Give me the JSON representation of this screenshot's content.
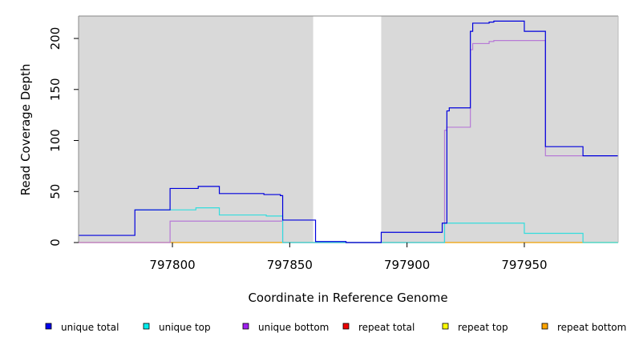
{
  "chart_data": {
    "type": "line",
    "xlabel": "Coordinate in Reference Genome",
    "ylabel": "Read Coverage Depth",
    "xlim": [
      797760,
      797990
    ],
    "ylim": [
      0,
      222
    ],
    "x_ticks": [
      797800,
      797850,
      797900,
      797950
    ],
    "x_tick_labels": [
      "797800",
      "797850",
      "797900",
      "797950"
    ],
    "y_ticks": [
      0,
      50,
      100,
      150,
      200
    ],
    "y_tick_labels": [
      "0",
      "50",
      "100",
      "150",
      "200"
    ],
    "shaded_regions": [
      {
        "x0": 797760,
        "x1": 797860,
        "color": "#d9d9d9"
      },
      {
        "x0": 797889,
        "x1": 797990,
        "color": "#d9d9d9"
      }
    ],
    "series": [
      {
        "name": "unique total",
        "color": "#0000dd",
        "steps": [
          [
            797760,
            7
          ],
          [
            797784,
            32
          ],
          [
            797799,
            53
          ],
          [
            797811,
            55
          ],
          [
            797820,
            48
          ],
          [
            797839,
            47
          ],
          [
            797846,
            46
          ],
          [
            797847,
            22
          ],
          [
            797861,
            1
          ],
          [
            797874,
            0
          ],
          [
            797889,
            10
          ],
          [
            797915,
            19
          ],
          [
            797917,
            129
          ],
          [
            797918,
            132
          ],
          [
            797927,
            207
          ],
          [
            797928,
            215
          ],
          [
            797935,
            216
          ],
          [
            797937,
            217
          ],
          [
            797950,
            207
          ],
          [
            797959,
            94
          ],
          [
            797975,
            85
          ],
          [
            797990,
            85
          ]
        ]
      },
      {
        "name": "unique top",
        "color": "#33dddd",
        "steps": [
          [
            797784,
            32
          ],
          [
            797810,
            34
          ],
          [
            797820,
            27
          ],
          [
            797840,
            26
          ],
          [
            797847,
            0
          ],
          [
            797916,
            19
          ],
          [
            797950,
            9
          ],
          [
            797975,
            0
          ],
          [
            797990,
            0
          ]
        ]
      },
      {
        "name": "unique bottom",
        "color": "#b77ad6",
        "steps": [
          [
            797760,
            0
          ],
          [
            797799,
            21
          ],
          [
            797847,
            0
          ],
          [
            797916,
            110
          ],
          [
            797917,
            113
          ],
          [
            797927,
            189
          ],
          [
            797928,
            195
          ],
          [
            797935,
            197
          ],
          [
            797937,
            198
          ],
          [
            797959,
            85
          ],
          [
            797975,
            85
          ],
          [
            797990,
            85
          ]
        ]
      },
      {
        "name": "repeat total",
        "color": "#ee0000",
        "steps": []
      },
      {
        "name": "repeat top",
        "color": "#dddd00",
        "steps": []
      },
      {
        "name": "repeat bottom",
        "color": "#f0a000",
        "steps": [
          [
            797760,
            0
          ],
          [
            797990,
            0
          ]
        ]
      }
    ],
    "legend": {
      "placement": "bottom",
      "items": [
        {
          "label": "unique total",
          "color": "#0000ee"
        },
        {
          "label": "unique top",
          "color": "#00eeee"
        },
        {
          "label": "unique bottom",
          "color": "#a020f0"
        },
        {
          "label": "repeat total",
          "color": "#ee0000"
        },
        {
          "label": "repeat top",
          "color": "#ffff00"
        },
        {
          "label": "repeat bottom",
          "color": "#ffa500"
        }
      ]
    },
    "grid": false
  }
}
